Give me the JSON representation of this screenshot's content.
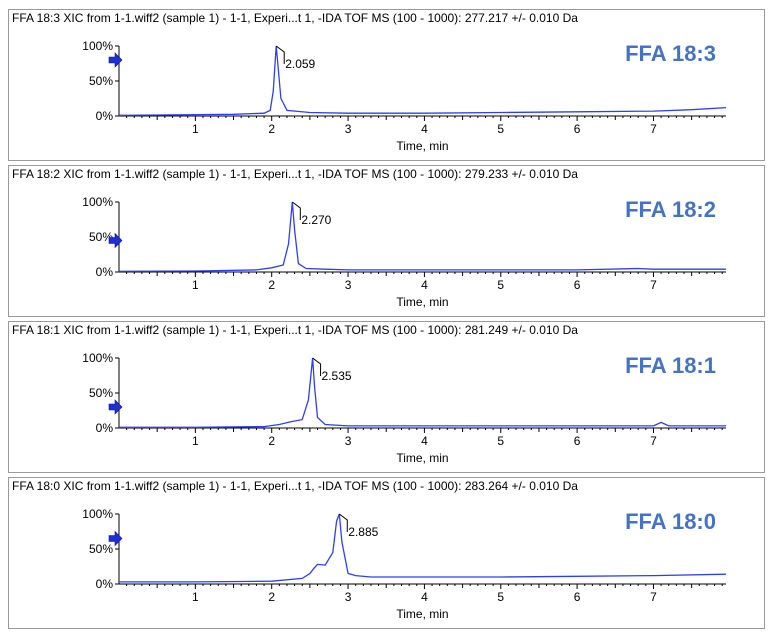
{
  "chart_data": [
    {
      "type": "line",
      "title": "FFA 18:3 XIC from 1-1.wiff2 (sample 1) - 1-1, Experi...t 1, -IDA TOF MS (100 - 1000): 277.217 +/- 0.010 Da",
      "compound": "FFA 18:3",
      "xlabel": "Time, min",
      "xlim": [
        0,
        7.95
      ],
      "ylim": [
        0,
        100
      ],
      "xticks": [
        "1",
        "2",
        "3",
        "4",
        "5",
        "6",
        "7"
      ],
      "yticks": [
        "0%",
        "50%",
        "100%"
      ],
      "marker_level": 80,
      "peak": {
        "x": 2.059,
        "y": 100,
        "label": "2.059"
      },
      "series": [
        {
          "color": "#2e3ff0",
          "x": [
            0.0,
            0.5,
            1.0,
            1.5,
            1.9,
            1.98,
            2.02,
            2.059,
            2.08,
            2.12,
            2.2,
            2.5,
            3.0,
            4.0,
            5.0,
            6.0,
            7.0,
            7.5,
            7.95
          ],
          "y": [
            1,
            1.5,
            2,
            2.5,
            4,
            8,
            35,
            100,
            75,
            25,
            8,
            5,
            4,
            4,
            5,
            6,
            7,
            9,
            12
          ]
        }
      ]
    },
    {
      "type": "line",
      "title": "FFA 18:2 XIC from 1-1.wiff2 (sample 1) - 1-1, Experi...t 1, -IDA TOF MS (100 - 1000): 279.233 +/- 0.010 Da",
      "compound": "FFA 18:2",
      "xlabel": "Time, min",
      "xlim": [
        0,
        7.95
      ],
      "ylim": [
        0,
        100
      ],
      "xticks": [
        "1",
        "2",
        "3",
        "4",
        "5",
        "6",
        "7"
      ],
      "yticks": [
        "0%",
        "50%",
        "100%"
      ],
      "marker_level": 45,
      "peak": {
        "x": 2.27,
        "y": 100,
        "label": "2.270"
      },
      "series": [
        {
          "color": "#2e3ff0",
          "x": [
            0.0,
            1.0,
            1.8,
            2.0,
            2.15,
            2.22,
            2.27,
            2.3,
            2.35,
            2.45,
            2.7,
            3.0,
            4.0,
            5.0,
            6.0,
            6.8,
            7.0,
            7.95
          ],
          "y": [
            1,
            1.5,
            3,
            6,
            10,
            40,
            100,
            60,
            12,
            5,
            4,
            3,
            3,
            3,
            3,
            5,
            4,
            4
          ]
        }
      ]
    },
    {
      "type": "line",
      "title": "FFA 18:1 XIC from 1-1.wiff2 (sample 1) - 1-1, Experi...t 1, -IDA TOF MS (100 - 1000): 281.249 +/- 0.010 Da",
      "compound": "FFA 18:1",
      "xlabel": "Time, min",
      "xlim": [
        0,
        7.95
      ],
      "ylim": [
        0,
        100
      ],
      "xticks": [
        "1",
        "2",
        "3",
        "4",
        "5",
        "6",
        "7"
      ],
      "yticks": [
        "0%",
        "50%",
        "100%"
      ],
      "marker_level": 30,
      "peak": {
        "x": 2.535,
        "y": 100,
        "label": "2.535"
      },
      "series": [
        {
          "color": "#2e3ff0",
          "x": [
            0.0,
            1.0,
            1.9,
            2.1,
            2.25,
            2.4,
            2.48,
            2.535,
            2.56,
            2.6,
            2.7,
            3.0,
            4.0,
            5.0,
            6.0,
            7.0,
            7.1,
            7.2,
            7.95
          ],
          "y": [
            1,
            1,
            2,
            5,
            9,
            12,
            40,
            100,
            60,
            15,
            5,
            3,
            3,
            3,
            3,
            3,
            8,
            3,
            3
          ]
        }
      ]
    },
    {
      "type": "line",
      "title": "FFA 18:0 XIC from 1-1.wiff2 (sample 1) - 1-1, Experi...t 1, -IDA TOF MS (100 - 1000): 283.264 +/- 0.010 Da",
      "compound": "FFA 18:0",
      "xlabel": "Time, min",
      "xlim": [
        0,
        7.95
      ],
      "ylim": [
        0,
        100
      ],
      "xticks": [
        "1",
        "2",
        "3",
        "4",
        "5",
        "6",
        "7"
      ],
      "yticks": [
        "0%",
        "50%",
        "100%"
      ],
      "marker_level": 65,
      "peak": {
        "x": 2.885,
        "y": 100,
        "label": "2.885"
      },
      "series": [
        {
          "color": "#2e3ff0",
          "x": [
            0.0,
            1.0,
            2.0,
            2.4,
            2.5,
            2.55,
            2.6,
            2.7,
            2.8,
            2.85,
            2.885,
            2.92,
            3.0,
            3.1,
            3.3,
            4.0,
            5.0,
            6.0,
            7.0,
            7.95
          ],
          "y": [
            3,
            3,
            4,
            8,
            15,
            22,
            28,
            27,
            45,
            90,
            100,
            60,
            15,
            12,
            10,
            10,
            10,
            11,
            12,
            14
          ]
        }
      ]
    }
  ]
}
